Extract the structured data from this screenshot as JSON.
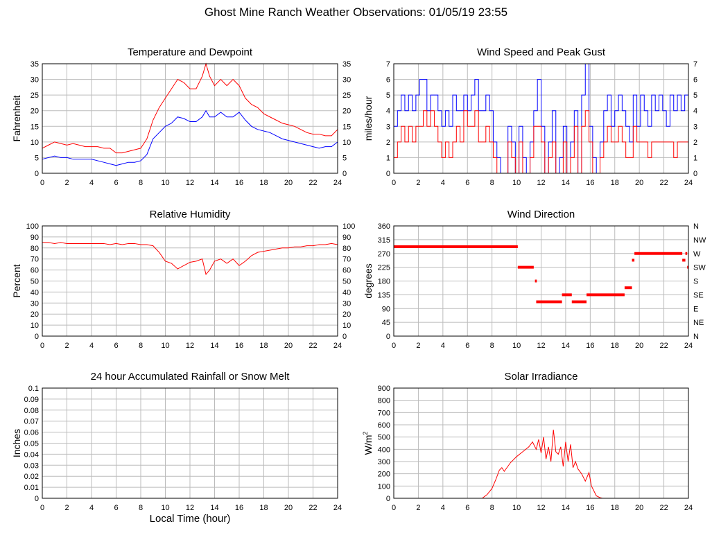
{
  "page": {
    "title": "Ghost Mine Ranch Weather Observations: 01/05/19 23:55"
  },
  "colors": {
    "temp": "#ff0000",
    "dew": "#0000ff",
    "grid": "#bbbbbb",
    "frame": "#000000"
  },
  "chart_data": [
    {
      "id": "temp",
      "type": "line",
      "title": "Temperature and Dewpoint",
      "ylabel": "Fahrenheit",
      "xlabel": "",
      "xlim": [
        0,
        24
      ],
      "ylim": [
        0,
        35
      ],
      "xticks": [
        0,
        2,
        4,
        6,
        8,
        10,
        12,
        14,
        16,
        18,
        20,
        22,
        24
      ],
      "yticks": [
        0,
        5,
        10,
        15,
        20,
        25,
        30,
        35
      ],
      "right_ticks": true,
      "series": [
        {
          "color": "#ff0000",
          "x": [
            0,
            0.5,
            1,
            1.5,
            2,
            2.5,
            3,
            3.5,
            4,
            4.5,
            5,
            5.5,
            6,
            6.5,
            7,
            7.5,
            8,
            8.5,
            9,
            9.5,
            10,
            10.5,
            11,
            11.5,
            12,
            12.5,
            13,
            13.3,
            13.6,
            14,
            14.5,
            15,
            15.5,
            16,
            16.5,
            17,
            17.5,
            18,
            18.5,
            19,
            19.5,
            20,
            20.5,
            21,
            21.5,
            22,
            22.5,
            23,
            23.5,
            24
          ],
          "y": [
            8,
            9,
            10,
            9.5,
            9,
            9.5,
            9,
            8.5,
            8.5,
            8.5,
            8,
            8,
            6.5,
            6.5,
            7,
            7.5,
            8,
            11,
            17,
            21,
            24,
            27,
            30,
            29,
            27,
            27,
            31,
            35,
            31,
            28,
            30,
            28,
            30,
            28,
            24,
            22,
            21,
            19,
            18,
            17,
            16,
            15.5,
            15,
            14,
            13,
            12.5,
            12.5,
            12,
            12,
            14
          ]
        },
        {
          "color": "#0000ff",
          "x": [
            0,
            0.5,
            1,
            1.5,
            2,
            2.5,
            3,
            3.5,
            4,
            4.5,
            5,
            5.5,
            6,
            6.5,
            7,
            7.5,
            8,
            8.5,
            9,
            9.5,
            10,
            10.5,
            11,
            11.5,
            12,
            12.5,
            13,
            13.3,
            13.6,
            14,
            14.5,
            15,
            15.5,
            16,
            16.5,
            17,
            17.5,
            18,
            18.5,
            19,
            19.5,
            20,
            20.5,
            21,
            21.5,
            22,
            22.5,
            23,
            23.5,
            24
          ],
          "y": [
            4.5,
            5,
            5.5,
            5,
            5,
            4.5,
            4.5,
            4.5,
            4.5,
            4,
            3.5,
            3,
            2.5,
            3,
            3.5,
            3.5,
            4,
            6,
            11,
            13,
            15,
            16,
            18,
            17.5,
            16.5,
            16.5,
            18,
            20,
            18,
            18,
            19.5,
            18,
            18,
            19.5,
            17,
            15,
            14,
            13.5,
            13,
            12,
            11,
            10.5,
            10,
            9.5,
            9,
            8.5,
            8,
            8.5,
            8.5,
            10
          ]
        }
      ]
    },
    {
      "id": "wind",
      "type": "line",
      "title": "Wind Speed and Peak Gust",
      "ylabel": "miles/hour",
      "xlabel": "",
      "xlim": [
        0,
        24
      ],
      "ylim": [
        0,
        7
      ],
      "xticks": [
        0,
        2,
        4,
        6,
        8,
        10,
        12,
        14,
        16,
        18,
        20,
        22,
        24
      ],
      "yticks": [
        0,
        1,
        2,
        3,
        4,
        5,
        6,
        7
      ],
      "right_ticks": true,
      "step": true,
      "series": [
        {
          "color": "#0000ff",
          "x": [
            0,
            0.3,
            0.6,
            0.9,
            1.2,
            1.5,
            1.8,
            2.1,
            2.4,
            2.7,
            3.0,
            3.3,
            3.6,
            3.9,
            4.2,
            4.5,
            4.8,
            5.1,
            5.4,
            5.7,
            6.0,
            6.3,
            6.6,
            6.9,
            7.2,
            7.5,
            7.8,
            8.1,
            8.4,
            8.7,
            9.0,
            9.3,
            9.6,
            9.9,
            10.2,
            10.5,
            10.8,
            11.1,
            11.4,
            11.7,
            12.0,
            12.3,
            12.6,
            12.9,
            13.2,
            13.5,
            13.8,
            14.1,
            14.4,
            14.7,
            15.0,
            15.3,
            15.6,
            15.9,
            16.2,
            16.5,
            16.8,
            17.1,
            17.4,
            17.7,
            18.0,
            18.3,
            18.6,
            18.9,
            19.2,
            19.5,
            19.8,
            20.1,
            20.4,
            20.7,
            21.0,
            21.3,
            21.6,
            21.9,
            22.2,
            22.5,
            22.8,
            23.1,
            23.4,
            23.7,
            24.0
          ],
          "y": [
            3,
            4,
            5,
            4,
            5,
            4,
            5,
            6,
            6,
            4,
            5,
            5,
            4,
            3,
            4,
            3,
            5,
            4,
            4,
            5,
            4,
            5,
            6,
            4,
            4,
            5,
            4,
            2,
            1,
            0,
            0,
            3,
            2,
            0,
            3,
            1,
            0,
            2,
            4,
            6,
            3,
            0,
            2,
            4,
            0,
            1,
            3,
            0,
            2,
            4,
            0,
            5,
            7,
            3,
            1,
            0,
            2,
            4,
            5,
            3,
            4,
            5,
            4,
            3,
            2,
            5,
            3,
            5,
            4,
            3,
            5,
            4,
            5,
            4,
            3,
            5,
            4,
            5,
            4,
            5,
            6
          ]
        },
        {
          "color": "#ff0000",
          "x": [
            0,
            0.3,
            0.6,
            0.9,
            1.2,
            1.5,
            1.8,
            2.1,
            2.4,
            2.7,
            3.0,
            3.3,
            3.6,
            3.9,
            4.2,
            4.5,
            4.8,
            5.1,
            5.4,
            5.7,
            6.0,
            6.3,
            6.6,
            6.9,
            7.2,
            7.5,
            7.8,
            8.1,
            8.4,
            8.7,
            9.0,
            9.3,
            9.6,
            9.9,
            10.2,
            10.5,
            10.8,
            11.1,
            11.4,
            11.7,
            12.0,
            12.3,
            12.6,
            12.9,
            13.2,
            13.5,
            13.8,
            14.1,
            14.4,
            14.7,
            15.0,
            15.3,
            15.6,
            15.9,
            16.2,
            16.5,
            16.8,
            17.1,
            17.4,
            17.7,
            18.0,
            18.3,
            18.6,
            18.9,
            19.2,
            19.5,
            19.8,
            20.1,
            20.4,
            20.7,
            21.0,
            21.3,
            21.6,
            21.9,
            22.2,
            22.5,
            22.8,
            23.1,
            23.4,
            23.7,
            24.0
          ],
          "y": [
            1,
            2,
            3,
            2,
            3,
            2,
            3,
            3,
            4,
            3,
            4,
            3,
            2,
            1,
            2,
            1,
            2,
            3,
            2,
            4,
            3,
            3,
            4,
            2,
            2,
            3,
            2,
            1,
            0,
            0,
            0,
            2,
            1,
            0,
            2,
            0,
            0,
            1,
            3,
            3,
            2,
            0,
            1,
            2,
            0,
            0,
            2,
            0,
            1,
            3,
            0,
            3,
            4,
            2,
            0,
            0,
            1,
            2,
            3,
            2,
            2,
            3,
            2,
            1,
            1,
            3,
            2,
            2,
            2,
            1,
            2,
            2,
            2,
            2,
            2,
            2,
            1,
            2,
            2,
            2,
            3
          ]
        }
      ]
    },
    {
      "id": "rh",
      "type": "line",
      "title": "Relative Humidity",
      "ylabel": "Percent",
      "xlabel": "",
      "xlim": [
        0,
        24
      ],
      "ylim": [
        0,
        100
      ],
      "xticks": [
        0,
        2,
        4,
        6,
        8,
        10,
        12,
        14,
        16,
        18,
        20,
        22,
        24
      ],
      "yticks": [
        0,
        10,
        20,
        30,
        40,
        50,
        60,
        70,
        80,
        90,
        100
      ],
      "right_ticks": true,
      "series": [
        {
          "color": "#ff0000",
          "x": [
            0,
            0.5,
            1,
            1.5,
            2,
            2.5,
            3,
            3.5,
            4,
            4.5,
            5,
            5.5,
            6,
            6.5,
            7,
            7.5,
            8,
            8.5,
            9,
            9.5,
            10,
            10.5,
            11,
            11.5,
            12,
            12.5,
            13,
            13.3,
            13.6,
            14,
            14.5,
            15,
            15.5,
            16,
            16.5,
            17,
            17.5,
            18,
            18.5,
            19,
            19.5,
            20,
            20.5,
            21,
            21.5,
            22,
            22.5,
            23,
            23.5,
            24
          ],
          "y": [
            85,
            85,
            84,
            85,
            84,
            84,
            84,
            84,
            84,
            84,
            84,
            83,
            84,
            83,
            84,
            84,
            83,
            83,
            82,
            76,
            68,
            66,
            61,
            64,
            67,
            68,
            70,
            56,
            60,
            68,
            70,
            66,
            70,
            64,
            68,
            73,
            76,
            77,
            78,
            79,
            80,
            80,
            81,
            81,
            82,
            82,
            83,
            83,
            84,
            83
          ]
        }
      ]
    },
    {
      "id": "winddir",
      "type": "scatter",
      "title": "Wind Direction",
      "ylabel": "degrees",
      "xlabel": "",
      "xlim": [
        0,
        24
      ],
      "ylim": [
        0,
        360
      ],
      "xticks": [
        0,
        2,
        4,
        6,
        8,
        10,
        12,
        14,
        16,
        18,
        20,
        22,
        24
      ],
      "yticks": [
        0,
        45,
        90,
        135,
        180,
        225,
        270,
        315,
        360
      ],
      "right_labels": [
        "N",
        "NE",
        "E",
        "SE",
        "S",
        "SW",
        "W",
        "NW",
        "N"
      ],
      "segments": [
        {
          "x0": 0,
          "x1": 10.1,
          "y": 292
        },
        {
          "x0": 10.1,
          "x1": 11.4,
          "y": 225
        },
        {
          "x0": 11.5,
          "x1": 11.65,
          "y": 180
        },
        {
          "x0": 11.6,
          "x1": 13.7,
          "y": 112
        },
        {
          "x0": 13.7,
          "x1": 14.5,
          "y": 135
        },
        {
          "x0": 14.5,
          "x1": 15.7,
          "y": 112
        },
        {
          "x0": 15.7,
          "x1": 18.8,
          "y": 135
        },
        {
          "x0": 18.8,
          "x1": 19.4,
          "y": 158
        },
        {
          "x0": 19.4,
          "x1": 19.6,
          "y": 248
        },
        {
          "x0": 19.6,
          "x1": 23.5,
          "y": 270
        },
        {
          "x0": 23.5,
          "x1": 23.75,
          "y": 248
        },
        {
          "x0": 23.75,
          "x1": 23.9,
          "y": 270
        },
        {
          "x0": 23.9,
          "x1": 24.0,
          "y": 225
        }
      ]
    },
    {
      "id": "rain",
      "type": "line",
      "title": "24 hour Accumulated Rainfall or Snow Melt",
      "ylabel": "Inches",
      "xlabel": "Local Time (hour)",
      "xlim": [
        0,
        24
      ],
      "ylim": [
        0,
        0.1
      ],
      "xticks": [
        0,
        2,
        4,
        6,
        8,
        10,
        12,
        14,
        16,
        18,
        20,
        22,
        24
      ],
      "yticks": [
        0,
        0.01,
        0.02,
        0.03,
        0.04,
        0.05,
        0.06,
        0.07,
        0.08,
        0.09,
        0.1
      ],
      "series": [
        {
          "color": "#ff0000",
          "x": [
            0,
            24
          ],
          "y": [
            0,
            0
          ]
        }
      ]
    },
    {
      "id": "solar",
      "type": "line",
      "title": "Solar Irradiance",
      "ylabel": "W/m",
      "ylabel_sup": "2",
      "xlabel": "",
      "xlim": [
        0,
        24
      ],
      "ylim": [
        0,
        900
      ],
      "xticks": [
        0,
        2,
        4,
        6,
        8,
        10,
        12,
        14,
        16,
        18,
        20,
        22,
        24
      ],
      "yticks": [
        0,
        100,
        200,
        300,
        400,
        500,
        600,
        700,
        800,
        900
      ],
      "series": [
        {
          "color": "#ff0000",
          "x": [
            0,
            7.2,
            7.6,
            8,
            8.3,
            8.6,
            8.8,
            9,
            9.5,
            10,
            10.5,
            11,
            11.3,
            11.6,
            11.8,
            12,
            12.2,
            12.4,
            12.6,
            12.8,
            13,
            13.2,
            13.4,
            13.6,
            13.8,
            14,
            14.2,
            14.4,
            14.6,
            14.8,
            15,
            15.3,
            15.6,
            15.9,
            16.1,
            16.3,
            16.5,
            16.8,
            17,
            17.5,
            24
          ],
          "y": [
            0,
            0,
            30,
            80,
            150,
            230,
            250,
            220,
            290,
            340,
            380,
            420,
            460,
            400,
            480,
            370,
            500,
            320,
            420,
            300,
            560,
            380,
            360,
            420,
            260,
            460,
            300,
            440,
            250,
            300,
            240,
            200,
            140,
            210,
            100,
            60,
            20,
            5,
            0,
            0,
            0
          ]
        }
      ]
    }
  ]
}
